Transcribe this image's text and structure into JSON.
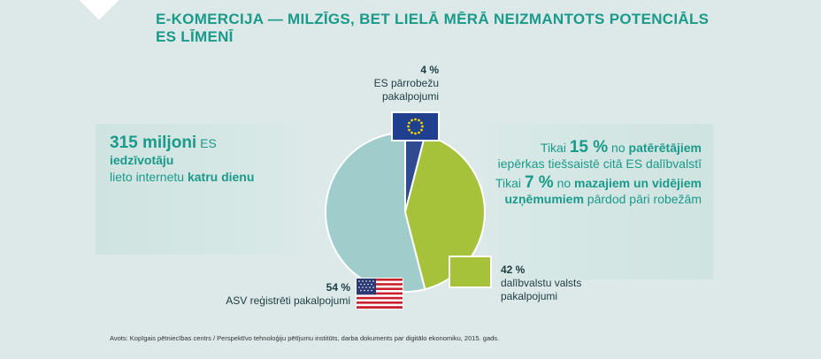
{
  "title": {
    "line1": "E-KOMERCIJA — MILZĪGS, BET LIELĀ MĒRĀ NEIZMANTOTS POTENCIĀLS",
    "line2": "ES LĪMENĪ"
  },
  "left_panel": {
    "number": "315 miljoni",
    "text1": " ES",
    "bold1": "iedzīvotāju",
    "text2": "lieto internetu ",
    "bold2": "katru dienu"
  },
  "right_panel": {
    "stat1": {
      "prefix": "Tikai ",
      "value": "15 %",
      "mid": " no ",
      "bold": "patērētājiem",
      "suffix": "iepērkas tiešsaistē citā ES dalībvalstī"
    },
    "stat2": {
      "prefix": "Tikai ",
      "value": "7 %",
      "mid": " no ",
      "bold": "mazajiem un vidējiem uzņēmumiem",
      "suffix": " pārdod pāri robežām"
    }
  },
  "chart_data": {
    "type": "pie",
    "slices": [
      {
        "label": "ES pārrobežu pakalpojumi",
        "pct_label": "4 %",
        "value": 4,
        "color": "#2f4a92",
        "flag": "eu-flag-icon"
      },
      {
        "label": "dalībvalstu valsts pakalpojumi",
        "pct_label": "42 %",
        "value": 42,
        "color": "#a6c23a",
        "flag": "none"
      },
      {
        "label": "ASV reģistrēti pakalpojumi",
        "pct_label": "54 %",
        "value": 54,
        "color": "#9fcdcb",
        "flag": "us-flag-icon"
      }
    ]
  },
  "source": "Avots: Kopīgais pētniecības centrs / Perspektīvo tehnoloģiju pētījumu institūts, darba dokuments par digitālo ekonomiku, 2015. gads.",
  "colors": {
    "accent": "#1a9a8a",
    "background": "#dde9e8"
  }
}
